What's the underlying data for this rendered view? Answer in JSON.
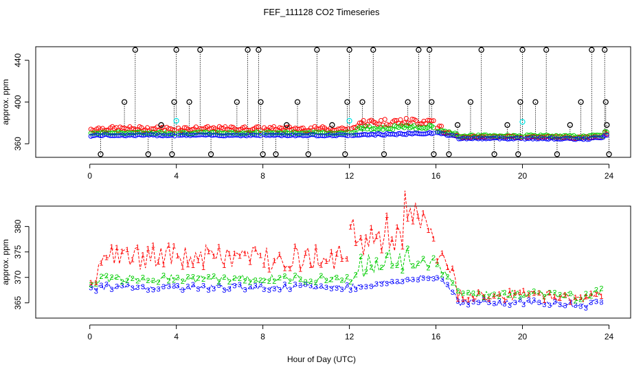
{
  "title": "FEF_111128  CO2 Timeseries",
  "xlabel": "Hour of Day (UTC)",
  "chart_data": [
    {
      "type": "scatter",
      "panel": "top",
      "ylabel": "approx. ppm",
      "xlim": [
        -2.5,
        25
      ],
      "ylim": [
        347,
        453
      ],
      "xticks": [
        0,
        4,
        8,
        12,
        16,
        20,
        24
      ],
      "yticks": [
        360,
        400,
        440
      ],
      "series": [
        {
          "name": "black",
          "color": "#000000",
          "marker": "circle"
        },
        {
          "name": "red",
          "color": "#ff0000",
          "marker": "circle"
        },
        {
          "name": "green",
          "color": "#00cc00",
          "marker": "circle"
        },
        {
          "name": "cyan",
          "color": "#00e5e5",
          "marker": "circle"
        },
        {
          "name": "blue",
          "color": "#0000ff",
          "marker": "circle"
        }
      ],
      "black_spikes": [
        {
          "x": 0.5,
          "y": 350
        },
        {
          "x": 1.6,
          "y": 400
        },
        {
          "x": 2.1,
          "y": 450
        },
        {
          "x": 2.7,
          "y": 350
        },
        {
          "x": 3.3,
          "y": 378
        },
        {
          "x": 3.8,
          "y": 350
        },
        {
          "x": 3.9,
          "y": 400
        },
        {
          "x": 4.0,
          "y": 450
        },
        {
          "x": 4.6,
          "y": 400
        },
        {
          "x": 5.1,
          "y": 450
        },
        {
          "x": 5.6,
          "y": 350
        },
        {
          "x": 6.8,
          "y": 400
        },
        {
          "x": 7.3,
          "y": 450
        },
        {
          "x": 7.8,
          "y": 450
        },
        {
          "x": 7.9,
          "y": 400
        },
        {
          "x": 8.0,
          "y": 350
        },
        {
          "x": 8.6,
          "y": 350
        },
        {
          "x": 9.1,
          "y": 378
        },
        {
          "x": 9.6,
          "y": 400
        },
        {
          "x": 10.1,
          "y": 350
        },
        {
          "x": 10.5,
          "y": 450
        },
        {
          "x": 11.2,
          "y": 378
        },
        {
          "x": 11.8,
          "y": 350
        },
        {
          "x": 11.9,
          "y": 400
        },
        {
          "x": 12.0,
          "y": 450
        },
        {
          "x": 12.6,
          "y": 400
        },
        {
          "x": 13.1,
          "y": 450
        },
        {
          "x": 13.6,
          "y": 350
        },
        {
          "x": 14.7,
          "y": 400
        },
        {
          "x": 15.2,
          "y": 450
        },
        {
          "x": 15.7,
          "y": 450
        },
        {
          "x": 15.8,
          "y": 400
        },
        {
          "x": 15.9,
          "y": 350
        },
        {
          "x": 16.6,
          "y": 350
        },
        {
          "x": 17.0,
          "y": 378
        },
        {
          "x": 17.6,
          "y": 400
        },
        {
          "x": 18.1,
          "y": 450
        },
        {
          "x": 18.7,
          "y": 350
        },
        {
          "x": 19.3,
          "y": 378
        },
        {
          "x": 19.8,
          "y": 350
        },
        {
          "x": 19.9,
          "y": 400
        },
        {
          "x": 20.0,
          "y": 450
        },
        {
          "x": 20.6,
          "y": 400
        },
        {
          "x": 21.1,
          "y": 450
        },
        {
          "x": 21.6,
          "y": 350
        },
        {
          "x": 22.2,
          "y": 378
        },
        {
          "x": 22.7,
          "y": 400
        },
        {
          "x": 23.2,
          "y": 450
        },
        {
          "x": 23.8,
          "y": 450
        },
        {
          "x": 23.85,
          "y": 400
        },
        {
          "x": 23.9,
          "y": 378
        },
        {
          "x": 24.0,
          "y": 350
        }
      ]
    },
    {
      "type": "line",
      "panel": "bottom",
      "ylabel": "approx. ppm",
      "xlim": [
        -2.5,
        25
      ],
      "ylim": [
        362,
        384
      ],
      "xticks": [
        0,
        4,
        8,
        12,
        16,
        20,
        24
      ],
      "yticks": [
        365,
        370,
        375,
        380
      ],
      "series": [
        {
          "name": "1",
          "color": "#ff0000"
        },
        {
          "name": "2",
          "color": "#00cc00"
        },
        {
          "name": "3",
          "color": "#0000ff"
        }
      ]
    }
  ]
}
